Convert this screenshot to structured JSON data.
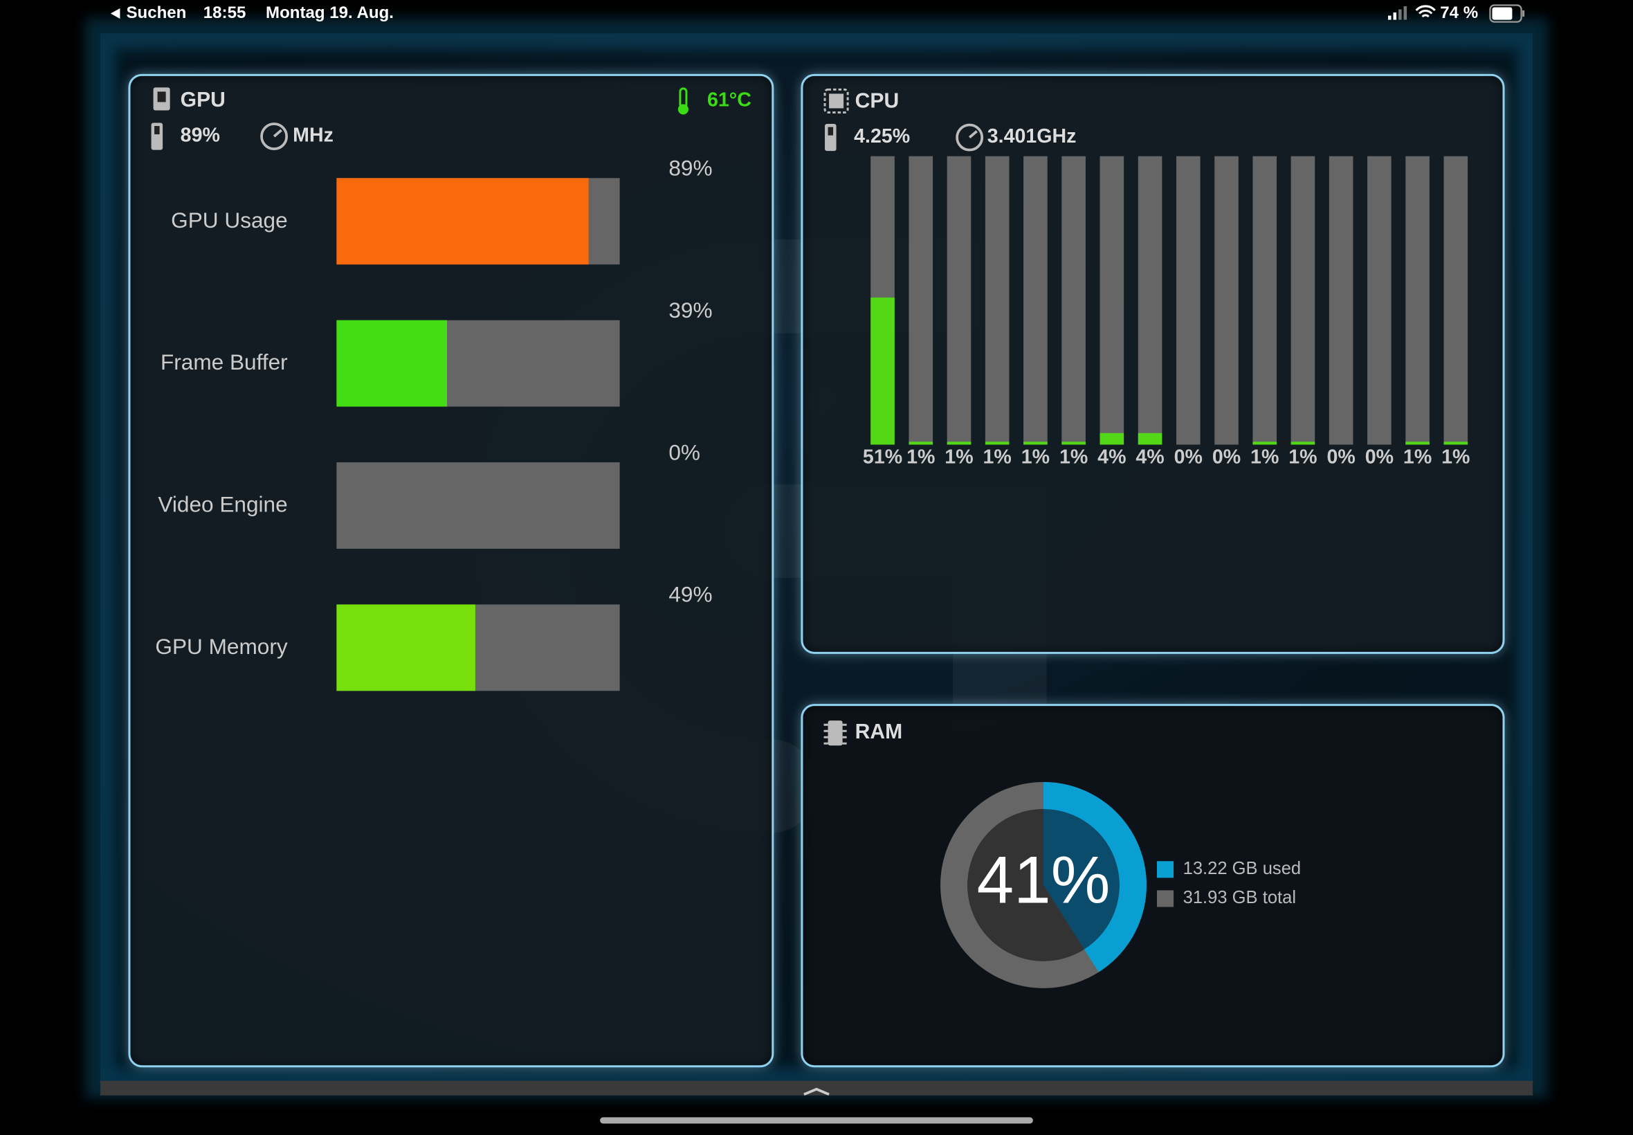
{
  "status_bar": {
    "back": "Suchen",
    "time": "18:55",
    "date": "Montag 19. Aug.",
    "battery": 74,
    "battery_label": "74 %"
  },
  "gpu": {
    "title": "GPU",
    "usage": "89%",
    "clock": "MHz",
    "temperature": "61°C",
    "xlim": [
      0,
      100
    ],
    "bars": [
      {
        "name": "GPU Usage",
        "value": 89,
        "value_label": "89%",
        "color": "#f86a0c"
      },
      {
        "name": "Frame Buffer",
        "value": 39,
        "value_label": "39%",
        "color": "#44dd14"
      },
      {
        "name": "Video Engine",
        "value": 0,
        "value_label": "0%",
        "color": "#44dd14"
      },
      {
        "name": "GPU Memory",
        "value": 49,
        "value_label": "49%",
        "color": "#77e00c"
      }
    ]
  },
  "cpu": {
    "title": "CPU",
    "usage": "4.25%",
    "clock": "3.401GHz",
    "ylim": [
      0,
      100
    ],
    "color": "#52d816",
    "cores": {
      "values": [
        51,
        1,
        1,
        1,
        1,
        1,
        4,
        4,
        0,
        0,
        1,
        1,
        0,
        0,
        1,
        1
      ],
      "value_labels": [
        "51%",
        "1%",
        "1%",
        "1%",
        "1%",
        "1%",
        "4%",
        "4%",
        "0%",
        "0%",
        "1%",
        "1%",
        "0%",
        "0%",
        "1%",
        "1%"
      ]
    }
  },
  "ram": {
    "title": "RAM",
    "percent": 41,
    "percent_label": "41%",
    "ring_range": [
      0,
      100
    ],
    "legend": [
      {
        "label": "13.22 GB used",
        "color": "#0a9fd2"
      },
      {
        "label": "31.93 GB total",
        "color": "#666666"
      }
    ]
  }
}
